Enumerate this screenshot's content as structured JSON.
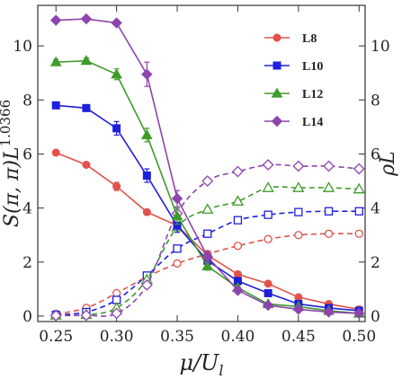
{
  "chart_data": {
    "type": "line",
    "xlabel_main": "μ/U",
    "xlabel_sub": "l",
    "ylabel_left_main": "S(π, π)L",
    "ylabel_left_sup": "1.0366",
    "ylabel_right_main": "ρL",
    "xlim": [
      0.235,
      0.505
    ],
    "ylim": [
      -0.2,
      11.5
    ],
    "xticks": [
      0.25,
      0.3,
      0.35,
      0.4,
      0.45,
      0.5
    ],
    "xtick_labels": [
      "0.25",
      "0.30",
      "0.35",
      "0.40",
      "0.45",
      "0.50"
    ],
    "yticks": [
      0,
      2,
      4,
      6,
      8,
      10
    ],
    "ytick_labels": [
      "0",
      "2",
      "4",
      "6",
      "8",
      "10"
    ],
    "x": [
      0.25,
      0.275,
      0.3,
      0.325,
      0.35,
      0.375,
      0.4,
      0.425,
      0.45,
      0.475,
      0.5
    ],
    "legend_position": "top-right",
    "structure_factor": [
      {
        "name": "L8",
        "color": "#e0524a",
        "marker": "circle",
        "values": [
          6.05,
          5.6,
          4.8,
          3.85,
          3.35,
          2.25,
          1.55,
          1.2,
          0.7,
          0.45,
          0.25
        ],
        "errors": [
          0.05,
          0.05,
          0.15,
          0.08,
          0.1,
          0.1,
          0.1,
          0.08,
          0.06,
          0.05,
          0.04
        ]
      },
      {
        "name": "L10",
        "color": "#1f1fdd",
        "marker": "square",
        "values": [
          7.8,
          7.7,
          6.95,
          5.2,
          3.35,
          2.05,
          1.3,
          0.85,
          0.45,
          0.3,
          0.2
        ],
        "errors": [
          0.08,
          0.08,
          0.25,
          0.25,
          0.25,
          0.15,
          0.12,
          0.1,
          0.07,
          0.05,
          0.04
        ]
      },
      {
        "name": "L12",
        "color": "#3e9c2a",
        "marker": "triangle",
        "values": [
          9.4,
          9.45,
          8.95,
          6.7,
          3.7,
          1.85,
          1.05,
          0.45,
          0.35,
          0.2,
          0.1
        ],
        "errors": [
          0.1,
          0.1,
          0.2,
          0.25,
          0.3,
          0.15,
          0.1,
          0.08,
          0.06,
          0.05,
          0.04
        ]
      },
      {
        "name": "L14",
        "color": "#8e44ad",
        "marker": "diamond",
        "values": [
          10.95,
          11.0,
          10.85,
          8.95,
          4.35,
          2.2,
          0.95,
          0.4,
          0.25,
          0.15,
          0.1
        ],
        "errors": [
          0.08,
          0.08,
          0.1,
          0.45,
          0.3,
          0.2,
          0.1,
          0.07,
          0.05,
          0.04,
          0.04
        ]
      }
    ],
    "density": [
      {
        "name": "L8",
        "color": "#e0524a",
        "marker": "circle-open",
        "values": [
          0.08,
          0.3,
          0.85,
          1.45,
          1.95,
          2.3,
          2.6,
          2.85,
          3.0,
          3.05,
          3.05
        ]
      },
      {
        "name": "L10",
        "color": "#1f1fdd",
        "marker": "square-open",
        "values": [
          0.05,
          0.15,
          0.6,
          1.5,
          2.5,
          3.05,
          3.55,
          3.75,
          3.85,
          3.88,
          3.88
        ]
      },
      {
        "name": "L12",
        "color": "#3e9c2a",
        "marker": "triangle-open",
        "values": [
          0.03,
          0.05,
          0.3,
          1.35,
          3.3,
          3.95,
          4.25,
          4.75,
          4.75,
          4.75,
          4.7
        ]
      },
      {
        "name": "L14",
        "color": "#8e44ad",
        "marker": "diamond-open",
        "values": [
          0.02,
          0.03,
          0.1,
          1.15,
          3.8,
          5.0,
          5.35,
          5.6,
          5.55,
          5.55,
          5.45
        ]
      }
    ]
  }
}
